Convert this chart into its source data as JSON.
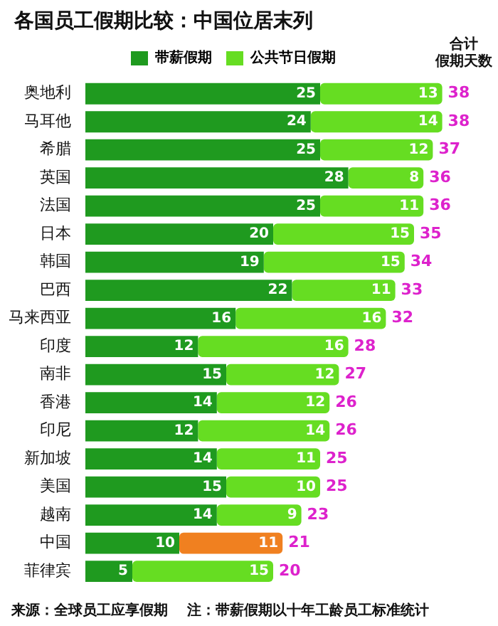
{
  "chart_data": {
    "type": "bar",
    "orientation": "horizontal",
    "stacked": true,
    "legend": "top",
    "title": "各国员工假期比较：中国位居末列",
    "categories": [
      "奥地利",
      "马耳他",
      "希腊",
      "英国",
      "法国",
      "日本",
      "韩国",
      "巴西",
      "马来西亚",
      "印度",
      "南非",
      "香港",
      "印尼",
      "新加坡",
      "美国",
      "越南",
      "中国",
      "菲律宾"
    ],
    "series": [
      {
        "name": "带薪假期",
        "color": "#1f9a1f",
        "values": [
          25,
          24,
          25,
          28,
          25,
          20,
          19,
          22,
          16,
          12,
          15,
          14,
          12,
          14,
          15,
          14,
          10,
          5
        ]
      },
      {
        "name": "公共节日假期",
        "color": "#66dd22",
        "colors": [
          "#66dd22",
          "#66dd22",
          "#66dd22",
          "#66dd22",
          "#66dd22",
          "#66dd22",
          "#66dd22",
          "#66dd22",
          "#66dd22",
          "#66dd22",
          "#66dd22",
          "#66dd22",
          "#66dd22",
          "#66dd22",
          "#66dd22",
          "#66dd22",
          "#f08020",
          "#66dd22"
        ],
        "values": [
          13,
          14,
          12,
          8,
          11,
          15,
          15,
          11,
          16,
          16,
          12,
          12,
          14,
          11,
          10,
          9,
          11,
          15
        ]
      }
    ],
    "data_labels": true,
    "totals": [
      "38",
      "38",
      "37",
      "36",
      "36",
      "35",
      "34",
      "33",
      "32",
      "28",
      "27",
      "26",
      "26",
      "25",
      "25",
      "23",
      "21",
      "20"
    ],
    "annotations": [
      "合计",
      "假期天数",
      "来源：全球员工应享假期",
      "注：带薪假期以十年工龄员工标准统计"
    ]
  }
}
